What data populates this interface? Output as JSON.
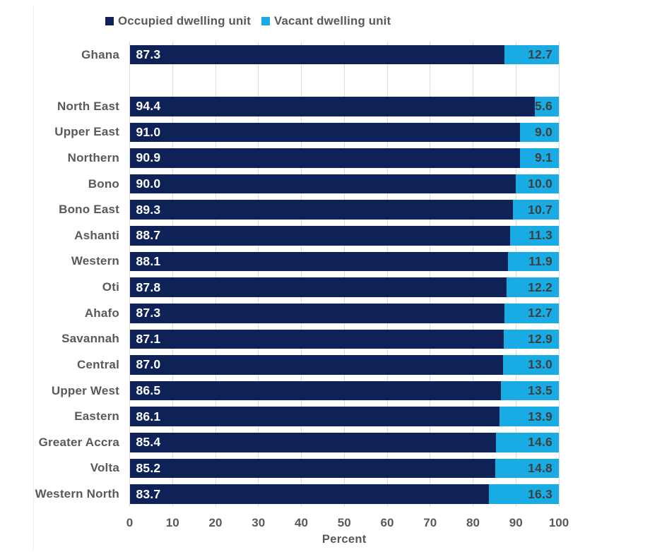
{
  "legend": {
    "items": [
      {
        "id": "occupied",
        "label": "Occupied dwelling unit",
        "color": "#0f2257"
      },
      {
        "id": "vacant",
        "label": "Vacant dwelling unit",
        "color": "#19abe3"
      }
    ]
  },
  "chart_data": {
    "type": "bar",
    "orientation": "horizontal",
    "stacked": true,
    "xlabel": "Percent",
    "xlim": [
      0,
      100
    ],
    "x_ticks": [
      0,
      10,
      20,
      30,
      40,
      50,
      60,
      70,
      80,
      90,
      100
    ],
    "grid": "vertical",
    "legend_position": "top",
    "categories": [
      "Ghana",
      "",
      "North East",
      "Upper East",
      "Northern",
      "Bono",
      "Bono East",
      "Ashanti",
      "Western",
      "Oti",
      "Ahafo",
      "Savannah",
      "Central",
      "Upper West",
      "Eastern",
      "Greater Accra",
      "Volta",
      "Western North"
    ],
    "series": [
      {
        "name": "Occupied dwelling unit",
        "color": "#0f2257",
        "value_label_color": "#ffffff",
        "values": [
          87.3,
          null,
          94.4,
          91.0,
          90.9,
          90.0,
          89.3,
          88.7,
          88.1,
          87.8,
          87.3,
          87.1,
          87.0,
          86.5,
          86.1,
          85.4,
          85.2,
          83.7
        ]
      },
      {
        "name": "Vacant dwelling unit",
        "color": "#19abe3",
        "value_label_color": "#404040",
        "values": [
          12.7,
          null,
          5.6,
          9.0,
          9.1,
          10.0,
          10.7,
          11.3,
          11.9,
          12.2,
          12.7,
          12.9,
          13.0,
          13.5,
          13.9,
          14.6,
          14.8,
          16.3
        ]
      }
    ]
  },
  "colors": {
    "grid": "#dcdcdc",
    "axis_text": "#595959",
    "category_text": "#595959",
    "occupied_bar": "#0f2257",
    "vacant_bar": "#19abe3",
    "occupied_value_text": "#ffffff",
    "vacant_value_text": "#404040",
    "background": "#ffffff"
  }
}
